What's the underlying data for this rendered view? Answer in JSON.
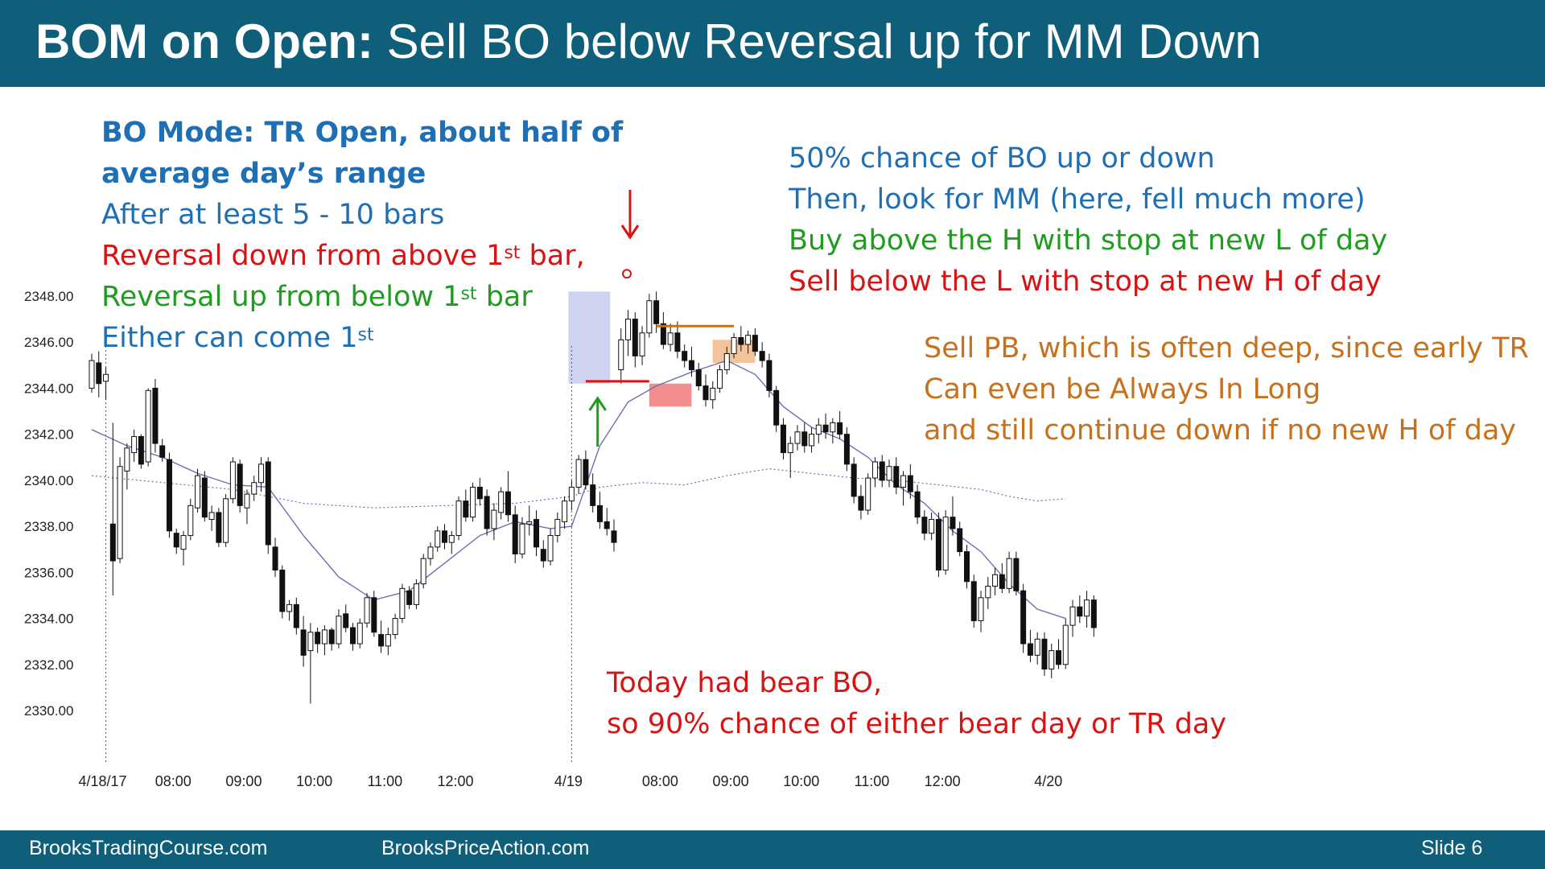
{
  "slide": {
    "title_bold": "BOM on Open:",
    "title_rest": " Sell BO below Reversal up for MM Down",
    "footer_left": "BrooksTradingCourse.com",
    "footer_mid": "BrooksPriceAction.com",
    "footer_right": "Slide  6"
  },
  "notes_left": [
    {
      "text": "BO Mode: TR Open, about half of",
      "sup": "",
      "tail": "",
      "color": "blue",
      "bold": true
    },
    {
      "text": "average day’s range",
      "sup": "",
      "tail": "",
      "color": "blue",
      "bold": true
    },
    {
      "text": "After at least 5 - 10 bars",
      "sup": "",
      "tail": "",
      "color": "blue",
      "bold": false
    },
    {
      "text": "Reversal down from above 1",
      "sup": "st",
      "tail": " bar,",
      "color": "red",
      "bold": false
    },
    {
      "text": "Reversal up from below 1",
      "sup": "st",
      "tail": " bar",
      "color": "green",
      "bold": false
    },
    {
      "text": "Either can come 1",
      "sup": "st",
      "tail": "",
      "color": "blue",
      "bold": false
    }
  ],
  "notes_right_top": [
    {
      "text": "50% chance of BO up or down",
      "color": "blue"
    },
    {
      "text": "Then, look for MM (here, fell much more)",
      "color": "blue"
    },
    {
      "text": "Buy above the H with stop at new L of day",
      "color": "green"
    },
    {
      "text": "Sell below the L with stop at new H of day",
      "color": "red"
    }
  ],
  "notes_right_mid": [
    {
      "text": "Sell PB, which is often deep, since early TR",
      "color": "orange"
    },
    {
      "text": "Can even be Always In Long",
      "color": "orange"
    },
    {
      "text": "and still continue down if no new H of day",
      "color": "orange"
    }
  ],
  "notes_bottom": [
    {
      "text": "Today had bear BO,",
      "color": "red"
    },
    {
      "text": "so 90% chance of either bear day or TR day",
      "color": "red"
    }
  ],
  "colors": {
    "header": "#0f5f7a",
    "blue": "#1f6fb4",
    "red": "#d61414",
    "green": "#1f9d1f",
    "orange": "#c8711c",
    "ema": "#6f6fb0",
    "open_range_box": "#c5cdec",
    "red_box": "#f07a7a",
    "orange_box": "#f1b98a"
  },
  "chart_data": {
    "type": "candlestick",
    "ylim": [
      2329.0,
      2349.5
    ],
    "yticks": [
      "2348.00",
      "2346.00",
      "2344.00",
      "2342.00",
      "2340.00",
      "2338.00",
      "2336.00",
      "2334.00",
      "2332.00",
      "2330.00"
    ],
    "ytick_values": [
      2348,
      2346,
      2344,
      2342,
      2340,
      2338,
      2336,
      2334,
      2332,
      2330
    ],
    "x_tick_labels": [
      "4/18/17",
      "08:00",
      "09:00",
      "10:00",
      "11:00",
      "12:00",
      "4/19",
      "08:00",
      "09:00",
      "10:00",
      "11:00",
      "12:00",
      "4/20"
    ],
    "x_tick_index": [
      2,
      12,
      22,
      32,
      42,
      52,
      68,
      81,
      91,
      101,
      111,
      121,
      136
    ],
    "session_breaks": [
      2,
      68
    ],
    "opening_range": {
      "x_start": 68,
      "x_end": 73,
      "high": 2348.2,
      "low": 2344.2
    },
    "breakout_low_line": {
      "x_start": 70,
      "x_end": 79,
      "y": 2344.3
    },
    "pullback_high_line": {
      "x_start": 80,
      "x_end": 91,
      "y": 2346.7
    },
    "red_box": {
      "x_start": 79,
      "x_end": 85,
      "high": 2344.2,
      "low": 2343.2
    },
    "orange_box": {
      "x_start": 88,
      "x_end": 94,
      "high": 2346.1,
      "low": 2345.1
    },
    "down_arrow_x": 74,
    "up_arrow_x": 71,
    "marker": {
      "x": 74,
      "y": 2348.2
    },
    "candles": [
      [
        2344.0,
        2345.5,
        2343.8,
        2345.2
      ],
      [
        2345.1,
        2345.6,
        2343.6,
        2344.2
      ],
      [
        2344.3,
        2344.9,
        2343.5,
        2344.6
      ],
      [
        2338.1,
        2342.5,
        2335.0,
        2336.5
      ],
      [
        2336.6,
        2341.0,
        2336.4,
        2340.6
      ],
      [
        2340.4,
        2341.6,
        2339.6,
        2341.4
      ],
      [
        2341.2,
        2342.2,
        2340.8,
        2341.9
      ],
      [
        2341.9,
        2342.0,
        2340.5,
        2340.7
      ],
      [
        2340.8,
        2344.0,
        2340.6,
        2343.9
      ],
      [
        2344.0,
        2344.4,
        2341.2,
        2341.6
      ],
      [
        2341.5,
        2341.8,
        2340.8,
        2341.0
      ],
      [
        2340.9,
        2341.2,
        2337.5,
        2337.8
      ],
      [
        2337.7,
        2337.9,
        2336.8,
        2337.1
      ],
      [
        2337.0,
        2337.8,
        2336.3,
        2337.6
      ],
      [
        2337.6,
        2339.2,
        2337.4,
        2338.9
      ],
      [
        2338.8,
        2340.5,
        2338.6,
        2340.2
      ],
      [
        2340.1,
        2340.4,
        2338.2,
        2338.4
      ],
      [
        2338.3,
        2338.9,
        2337.8,
        2338.6
      ],
      [
        2338.6,
        2338.8,
        2337.1,
        2337.3
      ],
      [
        2337.3,
        2339.4,
        2337.1,
        2339.2
      ],
      [
        2339.2,
        2341.0,
        2339.0,
        2340.8
      ],
      [
        2340.7,
        2340.9,
        2338.6,
        2338.9
      ],
      [
        2338.8,
        2339.6,
        2338.1,
        2339.4
      ],
      [
        2339.4,
        2340.2,
        2339.1,
        2339.9
      ],
      [
        2339.9,
        2341.0,
        2339.5,
        2340.7
      ],
      [
        2340.8,
        2341.0,
        2336.8,
        2337.2
      ],
      [
        2337.1,
        2337.5,
        2335.8,
        2336.1
      ],
      [
        2336.1,
        2336.3,
        2334.0,
        2334.3
      ],
      [
        2334.3,
        2334.8,
        2333.9,
        2334.6
      ],
      [
        2334.6,
        2334.9,
        2333.3,
        2333.6
      ],
      [
        2333.5,
        2334.1,
        2331.9,
        2332.4
      ],
      [
        2332.6,
        2333.8,
        2330.3,
        2333.4
      ],
      [
        2333.4,
        2333.6,
        2332.5,
        2332.9
      ],
      [
        2332.9,
        2333.7,
        2332.4,
        2333.5
      ],
      [
        2333.5,
        2333.6,
        2332.6,
        2332.9
      ],
      [
        2332.9,
        2334.4,
        2332.7,
        2334.1
      ],
      [
        2334.2,
        2334.6,
        2333.4,
        2333.6
      ],
      [
        2333.6,
        2333.8,
        2332.6,
        2332.9
      ],
      [
        2332.9,
        2334.0,
        2332.7,
        2333.8
      ],
      [
        2333.8,
        2335.1,
        2333.6,
        2334.9
      ],
      [
        2334.9,
        2335.2,
        2333.2,
        2333.4
      ],
      [
        2333.3,
        2333.9,
        2332.5,
        2332.8
      ],
      [
        2332.8,
        2333.6,
        2332.4,
        2333.3
      ],
      [
        2333.3,
        2334.2,
        2333.1,
        2334.0
      ],
      [
        2334.0,
        2335.5,
        2333.8,
        2335.3
      ],
      [
        2335.2,
        2335.4,
        2334.4,
        2334.6
      ],
      [
        2334.6,
        2335.7,
        2334.4,
        2335.5
      ],
      [
        2335.5,
        2336.8,
        2335.3,
        2336.6
      ],
      [
        2336.6,
        2337.3,
        2336.3,
        2337.1
      ],
      [
        2337.1,
        2338.0,
        2336.9,
        2337.8
      ],
      [
        2337.8,
        2338.1,
        2337.0,
        2337.3
      ],
      [
        2337.3,
        2337.8,
        2336.8,
        2337.6
      ],
      [
        2337.6,
        2339.3,
        2337.4,
        2339.1
      ],
      [
        2339.1,
        2339.6,
        2338.2,
        2338.4
      ],
      [
        2338.4,
        2339.9,
        2338.2,
        2339.7
      ],
      [
        2339.7,
        2340.1,
        2338.9,
        2339.2
      ],
      [
        2339.3,
        2339.6,
        2337.6,
        2337.9
      ],
      [
        2337.9,
        2339.0,
        2337.4,
        2338.7
      ],
      [
        2338.6,
        2339.7,
        2338.3,
        2339.5
      ],
      [
        2339.5,
        2340.4,
        2338.2,
        2338.5
      ],
      [
        2338.5,
        2338.9,
        2336.4,
        2336.8
      ],
      [
        2336.8,
        2338.4,
        2336.6,
        2338.1
      ],
      [
        2338.1,
        2338.9,
        2337.6,
        2338.2
      ],
      [
        2338.3,
        2338.7,
        2336.7,
        2337.1
      ],
      [
        2337.0,
        2337.4,
        2336.2,
        2336.5
      ],
      [
        2336.5,
        2337.9,
        2336.3,
        2337.6
      ],
      [
        2337.6,
        2338.6,
        2337.3,
        2338.3
      ],
      [
        2338.2,
        2339.3,
        2337.9,
        2339.1
      ],
      [
        2339.1,
        2340.0,
        2338.7,
        2339.7
      ],
      [
        2339.7,
        2341.1,
        2339.4,
        2340.9
      ],
      [
        2340.9,
        2341.3,
        2339.6,
        2339.8
      ],
      [
        2339.8,
        2340.3,
        2338.6,
        2338.9
      ],
      [
        2338.9,
        2339.5,
        2337.9,
        2338.2
      ],
      [
        2338.2,
        2338.8,
        2337.6,
        2337.9
      ],
      [
        2337.8,
        2338.3,
        2336.9,
        2337.3
      ]
    ],
    "candles_day2": [
      [
        2344.8,
        2346.6,
        2344.2,
        2346.1
      ],
      [
        2346.1,
        2347.4,
        2345.4,
        2347.0
      ],
      [
        2347.0,
        2347.3,
        2344.9,
        2345.4
      ],
      [
        2345.4,
        2346.7,
        2345.0,
        2346.4
      ],
      [
        2346.4,
        2348.1,
        2346.2,
        2347.8
      ],
      [
        2347.8,
        2348.2,
        2346.4,
        2346.8
      ],
      [
        2346.8,
        2347.3,
        2345.7,
        2345.9
      ],
      [
        2345.9,
        2346.8,
        2345.6,
        2346.4
      ],
      [
        2346.4,
        2346.9,
        2345.3,
        2345.6
      ],
      [
        2345.6,
        2345.9,
        2344.9,
        2345.2
      ],
      [
        2345.2,
        2345.8,
        2344.5,
        2344.8
      ],
      [
        2344.8,
        2345.1,
        2343.9,
        2344.1
      ],
      [
        2344.1,
        2344.6,
        2343.2,
        2343.5
      ],
      [
        2343.5,
        2344.3,
        2343.1,
        2344.0
      ],
      [
        2344.0,
        2345.0,
        2343.8,
        2344.8
      ],
      [
        2344.8,
        2345.8,
        2344.6,
        2345.5
      ],
      [
        2345.5,
        2346.4,
        2345.3,
        2346.2
      ],
      [
        2346.2,
        2346.7,
        2345.6,
        2345.9
      ],
      [
        2345.9,
        2346.5,
        2345.5,
        2346.3
      ],
      [
        2346.3,
        2346.6,
        2345.4,
        2345.6
      ],
      [
        2345.6,
        2346.0,
        2344.9,
        2345.2
      ],
      [
        2345.2,
        2345.5,
        2343.6,
        2343.9
      ],
      [
        2343.9,
        2344.1,
        2342.1,
        2342.4
      ],
      [
        2342.4,
        2342.7,
        2340.9,
        2341.2
      ],
      [
        2341.2,
        2341.9,
        2340.1,
        2341.6
      ],
      [
        2341.6,
        2342.4,
        2341.3,
        2342.1
      ],
      [
        2342.1,
        2342.5,
        2341.2,
        2341.5
      ],
      [
        2341.5,
        2342.3,
        2341.2,
        2342.0
      ],
      [
        2342.0,
        2342.7,
        2341.6,
        2342.4
      ],
      [
        2342.4,
        2342.9,
        2341.8,
        2342.1
      ],
      [
        2342.1,
        2342.7,
        2341.6,
        2342.5
      ],
      [
        2342.5,
        2343.0,
        2341.8,
        2342.0
      ],
      [
        2342.0,
        2342.3,
        2340.4,
        2340.7
      ],
      [
        2340.7,
        2341.0,
        2339.0,
        2339.3
      ],
      [
        2339.3,
        2339.8,
        2338.3,
        2338.7
      ],
      [
        2338.7,
        2340.3,
        2338.5,
        2340.1
      ],
      [
        2340.1,
        2341.0,
        2339.7,
        2340.8
      ],
      [
        2340.8,
        2341.1,
        2339.7,
        2340.0
      ],
      [
        2340.0,
        2340.9,
        2339.7,
        2340.6
      ],
      [
        2340.6,
        2341.0,
        2339.4,
        2339.7
      ],
      [
        2339.7,
        2340.4,
        2338.9,
        2340.2
      ],
      [
        2340.2,
        2340.7,
        2339.2,
        2339.5
      ],
      [
        2339.5,
        2339.8,
        2338.1,
        2338.4
      ],
      [
        2338.4,
        2338.7,
        2337.4,
        2337.7
      ],
      [
        2337.7,
        2338.6,
        2337.4,
        2338.3
      ],
      [
        2338.3,
        2338.6,
        2335.8,
        2336.1
      ],
      [
        2336.1,
        2338.7,
        2335.9,
        2338.4
      ],
      [
        2338.4,
        2339.3,
        2337.6,
        2337.9
      ],
      [
        2337.9,
        2338.2,
        2336.7,
        2336.9
      ],
      [
        2336.9,
        2337.2,
        2335.3,
        2335.6
      ],
      [
        2335.6,
        2335.9,
        2333.6,
        2333.9
      ],
      [
        2333.9,
        2335.2,
        2333.4,
        2334.9
      ],
      [
        2334.9,
        2335.8,
        2334.4,
        2335.4
      ],
      [
        2335.4,
        2336.2,
        2335.0,
        2335.9
      ],
      [
        2335.9,
        2336.4,
        2335.1,
        2335.3
      ],
      [
        2335.3,
        2336.9,
        2335.1,
        2336.6
      ],
      [
        2336.6,
        2336.9,
        2335.0,
        2335.2
      ],
      [
        2335.2,
        2335.5,
        2332.5,
        2332.9
      ],
      [
        2332.9,
        2333.5,
        2332.1,
        2332.4
      ],
      [
        2332.4,
        2333.4,
        2332.0,
        2333.1
      ],
      [
        2333.1,
        2333.4,
        2331.5,
        2331.8
      ],
      [
        2331.8,
        2332.9,
        2331.4,
        2332.6
      ],
      [
        2332.6,
        2333.1,
        2331.8,
        2332.0
      ],
      [
        2332.0,
        2334.0,
        2331.8,
        2333.7
      ],
      [
        2333.7,
        2334.8,
        2333.2,
        2334.5
      ],
      [
        2334.5,
        2335.0,
        2333.8,
        2334.1
      ],
      [
        2334.1,
        2335.2,
        2333.6,
        2334.8
      ],
      [
        2334.8,
        2335.0,
        2333.2,
        2333.6
      ]
    ],
    "ema": [
      [
        0,
        2342.2
      ],
      [
        5,
        2341.5
      ],
      [
        10,
        2341.0
      ],
      [
        15,
        2340.3
      ],
      [
        20,
        2339.8
      ],
      [
        25,
        2339.7
      ],
      [
        30,
        2337.6
      ],
      [
        35,
        2335.8
      ],
      [
        40,
        2334.8
      ],
      [
        45,
        2335.2
      ],
      [
        50,
        2336.4
      ],
      [
        55,
        2337.6
      ],
      [
        60,
        2338.2
      ],
      [
        65,
        2337.9
      ],
      [
        68,
        2338.0
      ],
      [
        72,
        2341.5
      ],
      [
        76,
        2343.4
      ],
      [
        80,
        2344.1
      ],
      [
        85,
        2344.7
      ],
      [
        90,
        2345.2
      ],
      [
        94,
        2344.6
      ],
      [
        98,
        2343.2
      ],
      [
        102,
        2342.3
      ],
      [
        106,
        2341.8
      ],
      [
        110,
        2341.0
      ],
      [
        114,
        2339.8
      ],
      [
        118,
        2339.0
      ],
      [
        122,
        2337.8
      ],
      [
        126,
        2336.9
      ],
      [
        130,
        2335.5
      ],
      [
        134,
        2334.4
      ],
      [
        138,
        2334.0
      ]
    ],
    "prior_close": [
      [
        0,
        2340.2
      ],
      [
        10,
        2339.9
      ],
      [
        20,
        2339.6
      ],
      [
        30,
        2339.0
      ],
      [
        40,
        2338.8
      ],
      [
        50,
        2338.9
      ],
      [
        60,
        2339.0
      ],
      [
        68,
        2339.3
      ],
      [
        72,
        2339.7
      ],
      [
        78,
        2339.9
      ],
      [
        84,
        2339.8
      ],
      [
        90,
        2340.2
      ],
      [
        96,
        2340.5
      ],
      [
        102,
        2340.3
      ],
      [
        108,
        2340.1
      ],
      [
        114,
        2340.0
      ],
      [
        120,
        2339.8
      ],
      [
        126,
        2339.6
      ],
      [
        130,
        2339.3
      ],
      [
        134,
        2339.1
      ],
      [
        138,
        2339.2
      ]
    ]
  }
}
